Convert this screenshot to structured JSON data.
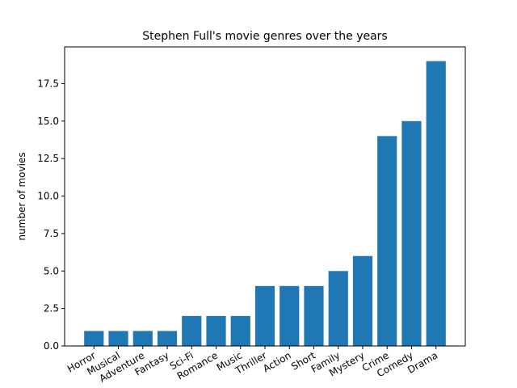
{
  "chart_data": {
    "type": "bar",
    "title": "Stephen Full's movie genres over the years",
    "xlabel": "",
    "ylabel": "number of movies",
    "categories": [
      "Horror",
      "Musical",
      "Adventure",
      "Fantasy",
      "Sci-Fi",
      "Romance",
      "Music",
      "Thriller",
      "Action",
      "Short",
      "Family",
      "Mystery",
      "Crime",
      "Comedy",
      "Drama"
    ],
    "values": [
      1,
      1,
      1,
      1,
      2,
      2,
      2,
      4,
      4,
      4,
      5,
      6,
      14,
      15,
      19
    ],
    "ylim": [
      0,
      19.95
    ],
    "yticks": [
      "0.0",
      "2.5",
      "5.0",
      "7.5",
      "10.0",
      "12.5",
      "15.0",
      "17.5"
    ],
    "bar_color": "#1f77b4",
    "grid": false,
    "legend": "none"
  }
}
